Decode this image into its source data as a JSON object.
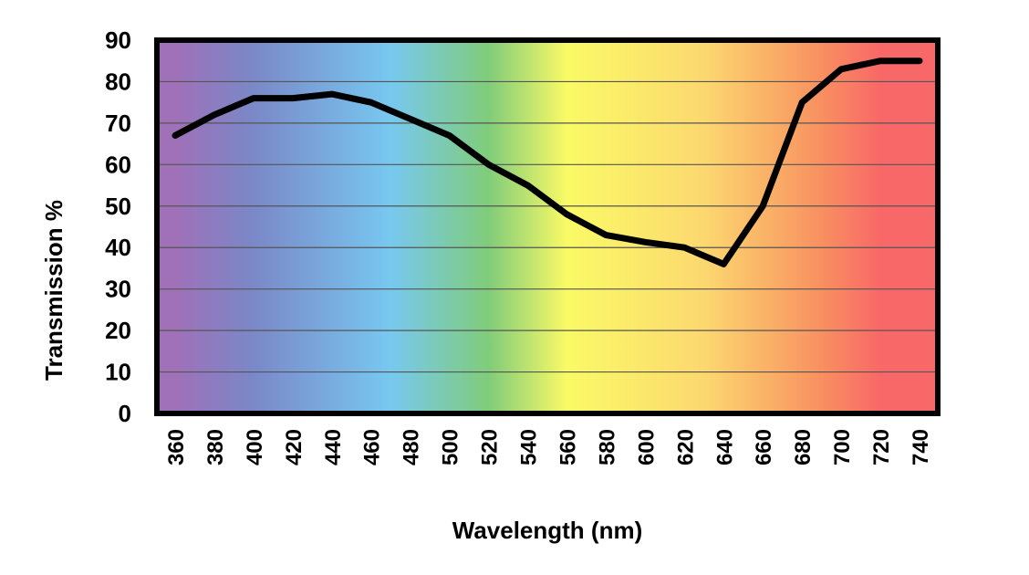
{
  "chart_data": {
    "type": "line",
    "title": "",
    "xlabel": "Wavelength (nm)",
    "ylabel": "Transmission %",
    "x": [
      360,
      380,
      400,
      420,
      440,
      460,
      480,
      500,
      520,
      540,
      560,
      580,
      600,
      620,
      640,
      660,
      680,
      700,
      720,
      740
    ],
    "x_tick_labels": [
      "360",
      "380",
      "400",
      "420",
      "440",
      "460",
      "480",
      "500",
      "520",
      "540",
      "560",
      "580",
      "600",
      "620",
      "640",
      "660",
      "680",
      "700",
      "720",
      "740"
    ],
    "y_ticks": [
      0,
      10,
      20,
      30,
      40,
      50,
      60,
      70,
      80,
      90
    ],
    "y_tick_labels": [
      "0",
      "10",
      "20",
      "30",
      "40",
      "50",
      "60",
      "70",
      "80",
      "90"
    ],
    "ylim": [
      0,
      90
    ],
    "grid": true,
    "legend": "none",
    "series": [
      {
        "values": [
          67,
          72,
          76,
          76,
          77,
          75,
          71,
          67,
          60,
          55,
          48,
          43,
          41.3,
          40,
          36,
          50,
          75,
          83,
          85,
          85
        ],
        "color": "#000000"
      }
    ],
    "background_spectrum": [
      {
        "at": "360",
        "color": "#a070b8"
      },
      {
        "at": "400",
        "color": "#7a88c8"
      },
      {
        "at": "470",
        "color": "#78c8f0"
      },
      {
        "at": "520",
        "color": "#80cc7a"
      },
      {
        "at": "560",
        "color": "#fafa66"
      },
      {
        "at": "630",
        "color": "#fcd870"
      },
      {
        "at": "690",
        "color": "#f89060"
      },
      {
        "at": "720",
        "color": "#f86868"
      }
    ]
  }
}
